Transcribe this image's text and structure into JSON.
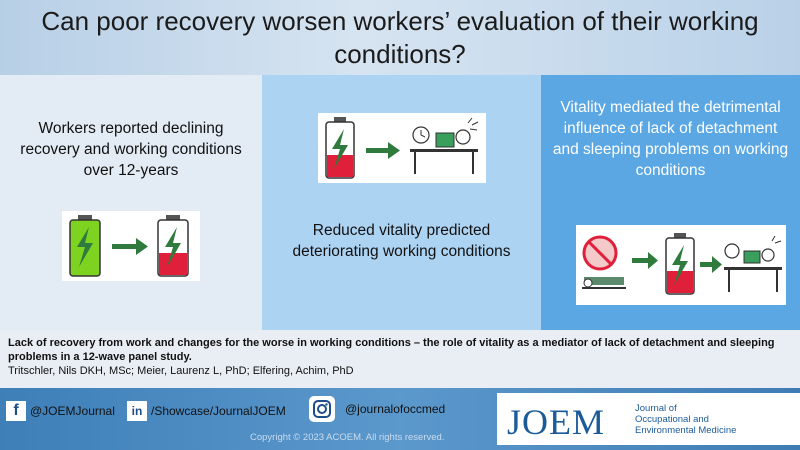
{
  "title": "Can poor recovery worsen workers’ evaluation of their working conditions?",
  "panels": {
    "left": "Workers reported declining recovery and working conditions over 12-years",
    "middle": "Reduced vitality predicted deteriorating working conditions",
    "right": "Vitality mediated the detrimental influence of lack of detachment and sleeping problems on working conditions"
  },
  "citation": {
    "title": "Lack of recovery from work and changes for the worse in working conditions – the role of vitality as a mediator of lack of detachment and sleeping problems in a 12-wave panel study.",
    "authors": "Tritschler, Nils DKH, MSc; Meier, Laurenz L, PhD; Elfering, Achim, PhD"
  },
  "social": {
    "facebook": "@JOEMJournal",
    "linkedin": "/Showcase/JournalJOEM",
    "instagram": "@journalofoccmed"
  },
  "copyright": "Copyright © 2023 ACOEM. All rights reserved.",
  "logo": {
    "wordmark": "JOEM",
    "sub1": "Journal of",
    "sub2": "Occupational and",
    "sub3": "Environmental Medicine"
  },
  "icons": {
    "facebook": "facebook-icon",
    "linkedin": "linkedin-icon",
    "instagram": "instagram-icon"
  },
  "colors": {
    "battery_full": "#7ed321",
    "battery_low": "#e0203a",
    "joem_blue": "#1b5b9a"
  }
}
